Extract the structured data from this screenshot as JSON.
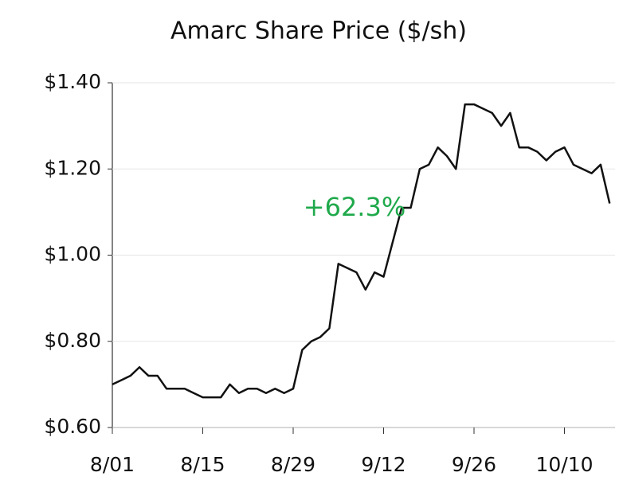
{
  "chart_data": {
    "type": "line",
    "title": "Amarc Share Price ($/sh)",
    "annotation": "+62.3%",
    "annotation_color": "#1fa94b",
    "categories": [
      "8/01",
      null,
      null,
      null,
      null,
      null,
      null,
      null,
      null,
      null,
      "8/15",
      null,
      null,
      null,
      null,
      null,
      null,
      null,
      null,
      null,
      "8/29",
      null,
      null,
      null,
      null,
      null,
      null,
      null,
      null,
      null,
      "9/12",
      null,
      null,
      null,
      null,
      null,
      null,
      null,
      null,
      null,
      "9/26",
      null,
      null,
      null,
      null,
      null,
      null,
      null,
      null,
      null,
      "10/10",
      null,
      null,
      null,
      null,
      null
    ],
    "values": [
      0.7,
      0.71,
      0.72,
      0.74,
      0.72,
      0.72,
      0.69,
      0.69,
      0.69,
      0.68,
      0.67,
      0.67,
      0.67,
      0.7,
      0.68,
      0.69,
      0.69,
      0.68,
      0.69,
      0.68,
      0.69,
      0.78,
      0.8,
      0.81,
      0.83,
      0.98,
      0.97,
      0.96,
      0.92,
      0.96,
      0.95,
      1.03,
      1.11,
      1.11,
      1.2,
      1.21,
      1.25,
      1.23,
      1.2,
      1.35,
      1.35,
      1.34,
      1.33,
      1.3,
      1.33,
      1.25,
      1.25,
      1.24,
      1.22,
      1.24,
      1.25,
      1.21,
      1.2,
      1.19,
      1.21,
      1.12
    ],
    "color": "#111111",
    "ylim": [
      0.6,
      1.4
    ],
    "yticks": [
      {
        "value": 0.6,
        "label": "$0.60"
      },
      {
        "value": 0.8,
        "label": "$0.80"
      },
      {
        "value": 1.0,
        "label": "$1.00"
      },
      {
        "value": 1.2,
        "label": "$1.20"
      },
      {
        "value": 1.4,
        "label": "$1.40"
      }
    ],
    "grid": true
  }
}
